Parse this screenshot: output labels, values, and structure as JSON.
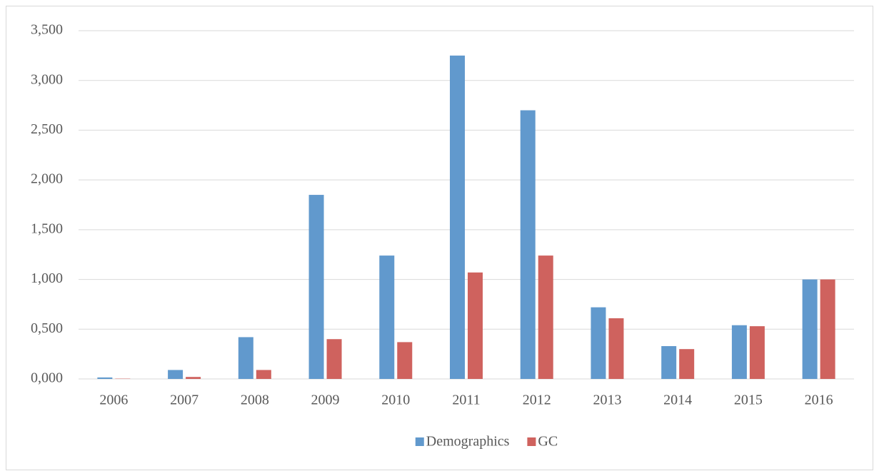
{
  "chart_data": {
    "type": "bar",
    "categories": [
      "2006",
      "2007",
      "2008",
      "2009",
      "2010",
      "2011",
      "2012",
      "2013",
      "2014",
      "2015",
      "2016"
    ],
    "series": [
      {
        "name": "Demographics",
        "color": "#6199cd",
        "values": [
          0.015,
          0.09,
          0.42,
          1.85,
          1.24,
          3.25,
          2.7,
          0.72,
          0.33,
          0.54,
          1.0
        ]
      },
      {
        "name": "GC",
        "color": "#cf625e",
        "values": [
          0.003,
          0.02,
          0.09,
          0.4,
          0.37,
          1.07,
          1.24,
          0.61,
          0.3,
          0.53,
          1.0
        ]
      }
    ],
    "ylim": [
      0,
      3.5
    ],
    "yticks": [
      {
        "value": 0,
        "label": "0,000"
      },
      {
        "value": 0.5,
        "label": "0,500"
      },
      {
        "value": 1,
        "label": "1,000"
      },
      {
        "value": 1.5,
        "label": "1,500"
      },
      {
        "value": 2,
        "label": "2,000"
      },
      {
        "value": 2.5,
        "label": "2,500"
      },
      {
        "value": 3,
        "label": "3,000"
      },
      {
        "value": 3.5,
        "label": "3,500"
      }
    ],
    "grid": true,
    "legend": "bottom"
  }
}
